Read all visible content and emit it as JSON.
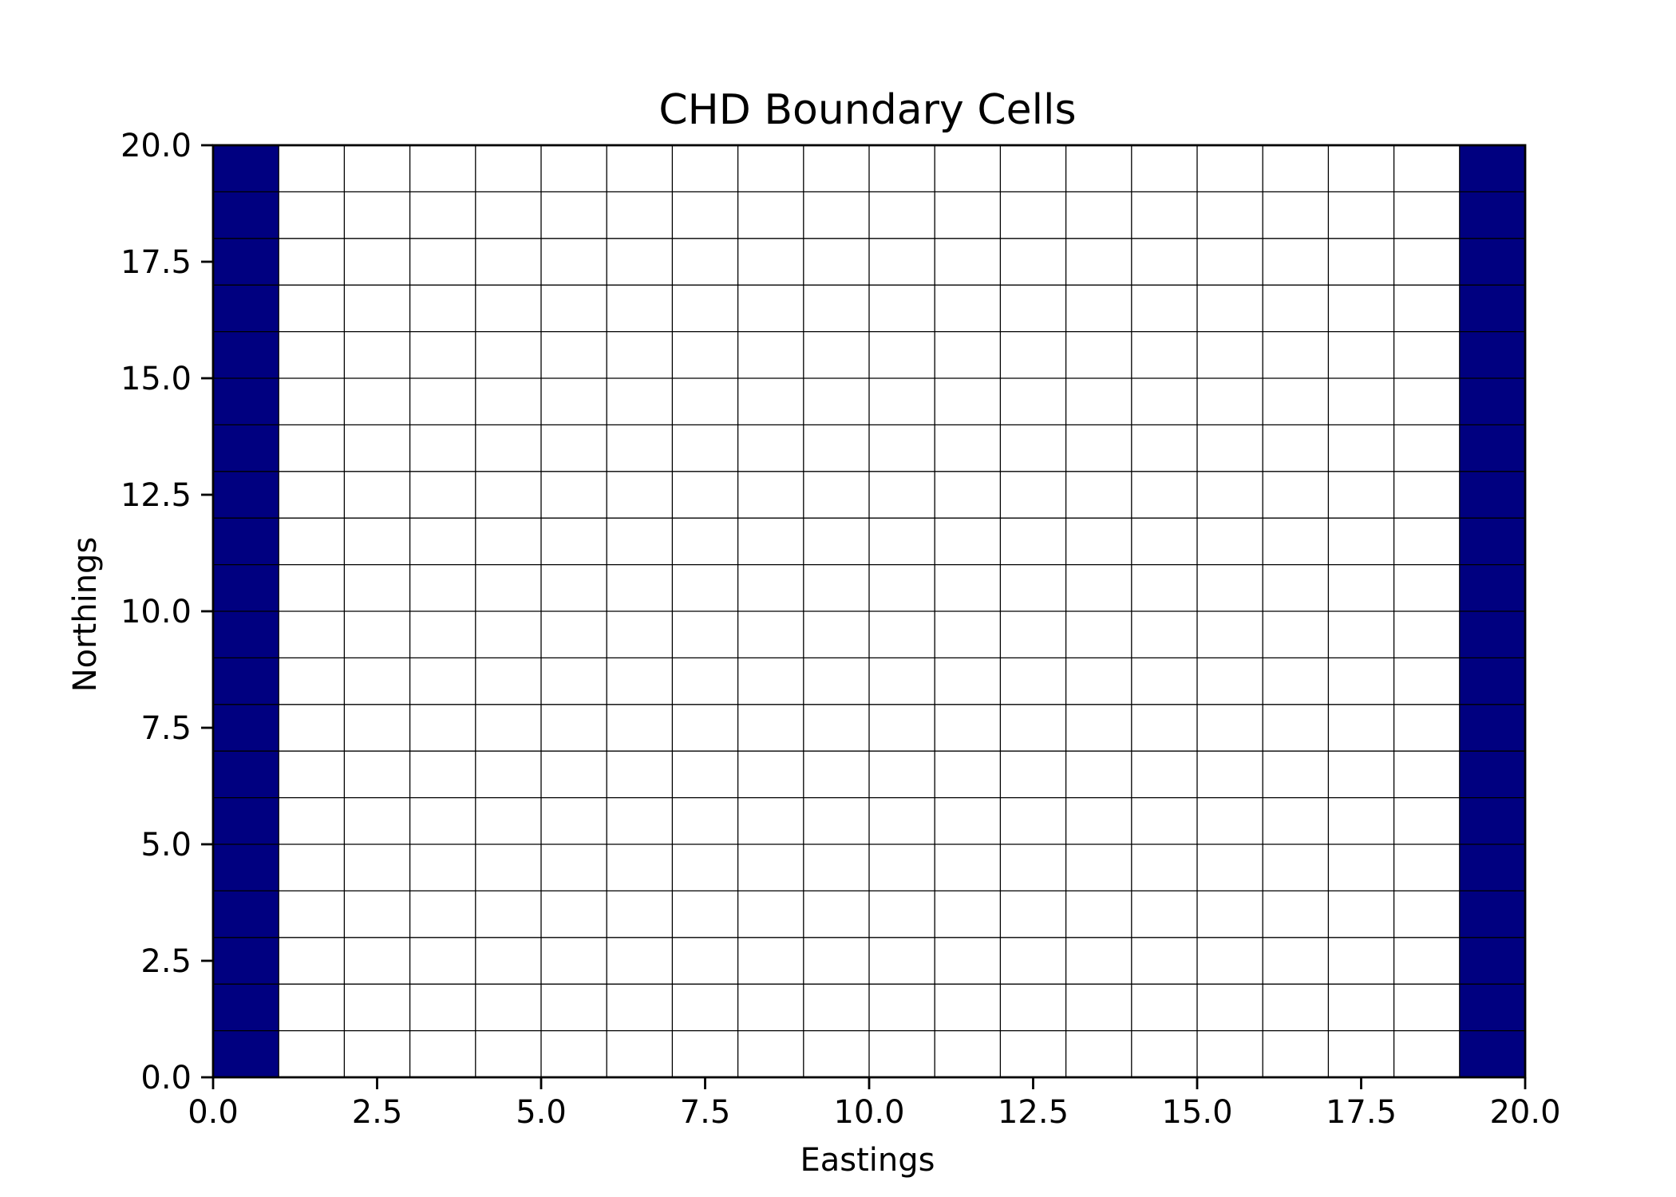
{
  "chart_data": {
    "type": "heatmap",
    "title": "CHD Boundary Cells",
    "xlabel": "Eastings",
    "ylabel": "Northings",
    "xlim": [
      0,
      20
    ],
    "ylim": [
      0,
      20
    ],
    "ncol": 20,
    "nrow": 20,
    "x_ticks": [
      0,
      2.5,
      5,
      7.5,
      10,
      12.5,
      15,
      17.5,
      20
    ],
    "x_tick_labels": [
      "0.0",
      "2.5",
      "5.0",
      "7.5",
      "10.0",
      "12.5",
      "15.0",
      "17.5",
      "20.0"
    ],
    "y_ticks": [
      0,
      2.5,
      5,
      7.5,
      10,
      12.5,
      15,
      17.5,
      20
    ],
    "y_tick_labels": [
      "0.0",
      "2.5",
      "5.0",
      "7.5",
      "10.0",
      "12.5",
      "15.0",
      "17.5",
      "20.0"
    ],
    "boundary_columns": [
      0,
      19
    ],
    "grid": true,
    "colors": {
      "boundary_fill": "#000080",
      "grid_line": "#000000",
      "background": "#ffffff"
    }
  }
}
